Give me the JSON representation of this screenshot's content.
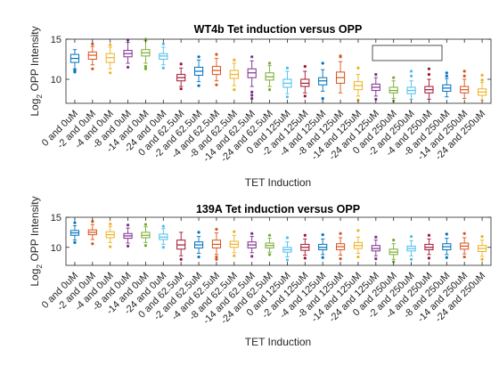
{
  "colors": {
    "cycle": [
      "#0072BD",
      "#D95319",
      "#EDB120",
      "#7E2F8E",
      "#77AC30",
      "#4DBEEE",
      "#A2142F"
    ]
  },
  "chart_data": [
    {
      "type": "box",
      "title": "WT4b Tet induction versus OPP",
      "xlabel": "TET Induction",
      "ylabel_main": "Log",
      "ylabel_sub": "2",
      "ylabel_rest": " OPP Intensity",
      "ylim": [
        7,
        15
      ],
      "yticks": [
        10,
        15
      ],
      "legend": "top-right (empty box)",
      "categories": [
        "0 and 0uM",
        "-2 and 0uM",
        "-4 and 0uM",
        "-8 and 0uM",
        "-14 and 0uM",
        "-24 and 0uM",
        "0 and 62.5uM",
        "-2 and 62.5uM",
        "-4 and 62.5uM",
        "-8 and 62.5uM",
        "-14 and 62.5uM",
        "-24 and 62.5uM",
        "0 and 125uM",
        "-2 and 125uM",
        "-4 and 125uM",
        "-8 and 125uM",
        "-14 and 125uM",
        "-24 and 125uM",
        "0 and 250uM",
        "-2 and 250uM",
        "-4 and 250uM",
        "-8 and 250uM",
        "-14 and 250uM",
        "-24 and 250uM"
      ],
      "boxes": [
        {
          "median": 12.6,
          "q1": 12.1,
          "q3": 13.1,
          "lo": 11.3,
          "hi": 13.7,
          "outliers": [
            10.9,
            11.1
          ]
        },
        {
          "median": 13.0,
          "q1": 12.5,
          "q3": 13.4,
          "lo": 11.8,
          "hi": 14.1,
          "outliers": [
            11.3,
            14.4
          ]
        },
        {
          "median": 12.7,
          "q1": 12.1,
          "q3": 13.2,
          "lo": 11.3,
          "hi": 14.0,
          "outliers": [
            10.8,
            14.3
          ]
        },
        {
          "median": 13.2,
          "q1": 12.8,
          "q3": 13.6,
          "lo": 12.0,
          "hi": 14.6,
          "outliers": [
            11.5,
            14.9
          ]
        },
        {
          "median": 13.3,
          "q1": 12.9,
          "q3": 13.7,
          "lo": 12.0,
          "hi": 14.8,
          "outliers": [
            11.3,
            11.6,
            15.0
          ]
        },
        {
          "median": 12.9,
          "q1": 12.5,
          "q3": 13.2,
          "lo": 11.8,
          "hi": 14.0,
          "outliers": [
            11.4,
            14.4
          ]
        },
        {
          "median": 10.2,
          "q1": 9.8,
          "q3": 10.6,
          "lo": 9.1,
          "hi": 11.4,
          "outliers": [
            8.8,
            11.9
          ]
        },
        {
          "median": 11.0,
          "q1": 10.5,
          "q3": 11.5,
          "lo": 9.7,
          "hi": 12.4,
          "outliers": [
            9.2,
            12.8
          ]
        },
        {
          "median": 11.1,
          "q1": 10.6,
          "q3": 11.6,
          "lo": 9.8,
          "hi": 12.6,
          "outliers": [
            9.3,
            13.1
          ]
        },
        {
          "median": 10.6,
          "q1": 10.1,
          "q3": 11.1,
          "lo": 9.2,
          "hi": 12.0,
          "outliers": [
            8.7,
            12.4
          ]
        },
        {
          "median": 10.8,
          "q1": 10.2,
          "q3": 11.3,
          "lo": 9.1,
          "hi": 12.3,
          "outliers": [
            7.6,
            8.0,
            8.4,
            12.8
          ]
        },
        {
          "median": 10.3,
          "q1": 9.9,
          "q3": 10.8,
          "lo": 9.1,
          "hi": 11.7,
          "outliers": [
            8.7,
            12.0
          ]
        },
        {
          "median": 9.5,
          "q1": 9.0,
          "q3": 10.0,
          "lo": 8.2,
          "hi": 11.0,
          "outliers": [
            7.8,
            11.4
          ]
        },
        {
          "median": 9.5,
          "q1": 9.1,
          "q3": 10.0,
          "lo": 8.3,
          "hi": 11.0,
          "outliers": [
            7.9,
            11.6
          ]
        },
        {
          "median": 9.8,
          "q1": 9.3,
          "q3": 10.2,
          "lo": 8.5,
          "hi": 11.2,
          "outliers": [
            7.6,
            12.0
          ]
        },
        {
          "median": 10.2,
          "q1": 9.5,
          "q3": 10.9,
          "lo": 8.3,
          "hi": 12.2,
          "outliers": [
            12.8,
            12.9
          ]
        },
        {
          "median": 9.2,
          "q1": 8.7,
          "q3": 9.7,
          "lo": 7.9,
          "hi": 10.6,
          "outliers": [
            7.4,
            11.4
          ]
        },
        {
          "median": 9.0,
          "q1": 8.6,
          "q3": 9.4,
          "lo": 7.9,
          "hi": 10.2,
          "outliers": [
            7.5,
            10.6
          ]
        },
        {
          "median": 8.6,
          "q1": 8.3,
          "q3": 9.0,
          "lo": 7.6,
          "hi": 9.8,
          "outliers": [
            7.3,
            10.2
          ]
        },
        {
          "median": 8.6,
          "q1": 8.2,
          "q3": 9.0,
          "lo": 7.5,
          "hi": 9.8,
          "outliers": [
            10.4,
            11.0
          ]
        },
        {
          "median": 8.7,
          "q1": 8.3,
          "q3": 9.1,
          "lo": 7.5,
          "hi": 10.0,
          "outliers": [
            10.6,
            11.3
          ]
        },
        {
          "median": 8.9,
          "q1": 8.5,
          "q3": 9.3,
          "lo": 7.8,
          "hi": 10.1,
          "outliers": [
            10.4,
            10.8
          ]
        },
        {
          "median": 8.7,
          "q1": 8.3,
          "q3": 9.1,
          "lo": 7.6,
          "hi": 10.0,
          "outliers": [
            10.4,
            11.0
          ]
        },
        {
          "median": 8.4,
          "q1": 8.0,
          "q3": 8.8,
          "lo": 7.4,
          "hi": 9.6,
          "outliers": [
            9.9,
            10.5
          ]
        }
      ]
    },
    {
      "type": "box",
      "title": "139A Tet induction versus OPP",
      "xlabel": "TET Induction",
      "ylabel_main": "Log",
      "ylabel_sub": "2",
      "ylabel_rest": " OPP Intensity",
      "ylim": [
        7,
        15
      ],
      "yticks": [
        10,
        15
      ],
      "categories": [
        "0 and 0uM",
        "-2 and 0uM",
        "-4 and 0uM",
        "-8 and 0uM",
        "-14 and 0uM",
        "-24 and 0uM",
        "0 and 62.5uM",
        "-2 and 62.5uM",
        "-4 and 62.5uM",
        "-8 and 62.5uM",
        "-14 and 62.5uM",
        "-24 and 62.5uM",
        "0 and 125uM",
        "-2 and 125uM",
        "-4 and 125uM",
        "-8 and 125uM",
        "-14 and 125uM",
        "-24 and 125uM",
        "0 and 250uM",
        "-2 and 250uM",
        "-4 and 250uM",
        "-8 and 250uM",
        "-14 and 250uM",
        "-24 and 250uM"
      ],
      "boxes": [
        {
          "median": 12.4,
          "q1": 12.0,
          "q3": 12.8,
          "lo": 11.2,
          "hi": 13.6,
          "outliers": [
            10.8,
            14.1
          ]
        },
        {
          "median": 12.5,
          "q1": 12.1,
          "q3": 12.9,
          "lo": 11.3,
          "hi": 13.8,
          "outliers": [
            10.6,
            14.3
          ]
        },
        {
          "median": 12.1,
          "q1": 11.6,
          "q3": 12.6,
          "lo": 10.8,
          "hi": 13.5,
          "outliers": [
            10.1,
            13.9
          ]
        },
        {
          "median": 11.9,
          "q1": 11.5,
          "q3": 12.3,
          "lo": 10.7,
          "hi": 13.2,
          "outliers": [
            10.2,
            13.7
          ]
        },
        {
          "median": 12.0,
          "q1": 11.6,
          "q3": 12.5,
          "lo": 10.8,
          "hi": 13.4,
          "outliers": [
            10.3,
            13.8
          ]
        },
        {
          "median": 11.7,
          "q1": 11.3,
          "q3": 12.2,
          "lo": 10.5,
          "hi": 13.1,
          "outliers": [
            10.0,
            13.5
          ]
        },
        {
          "median": 10.4,
          "q1": 9.7,
          "q3": 11.2,
          "lo": 8.6,
          "hi": 12.5,
          "outliers": [
            8.0
          ]
        },
        {
          "median": 10.4,
          "q1": 9.9,
          "q3": 10.9,
          "lo": 9.0,
          "hi": 11.8,
          "outliers": [
            8.4,
            12.5
          ]
        },
        {
          "median": 10.5,
          "q1": 9.9,
          "q3": 11.2,
          "lo": 8.8,
          "hi": 12.4,
          "outliers": [
            8.0,
            8.4,
            13.0
          ]
        },
        {
          "median": 10.5,
          "q1": 10.0,
          "q3": 11.0,
          "lo": 9.1,
          "hi": 12.0,
          "outliers": [
            8.6,
            12.6
          ]
        },
        {
          "median": 10.4,
          "q1": 9.9,
          "q3": 10.9,
          "lo": 9.1,
          "hi": 11.8,
          "outliers": [
            8.5,
            12.3
          ]
        },
        {
          "median": 10.3,
          "q1": 9.9,
          "q3": 10.7,
          "lo": 9.2,
          "hi": 11.5,
          "outliers": [
            8.8,
            12.0
          ]
        },
        {
          "median": 9.6,
          "q1": 9.2,
          "q3": 10.0,
          "lo": 8.4,
          "hi": 10.9,
          "outliers": [
            7.9,
            11.6
          ]
        },
        {
          "median": 10.0,
          "q1": 9.5,
          "q3": 10.5,
          "lo": 8.7,
          "hi": 11.4,
          "outliers": [
            8.2,
            12.0
          ]
        },
        {
          "median": 10.0,
          "q1": 9.6,
          "q3": 10.5,
          "lo": 8.8,
          "hi": 11.4,
          "outliers": [
            8.3,
            12.1
          ]
        },
        {
          "median": 10.1,
          "q1": 9.6,
          "q3": 10.6,
          "lo": 8.7,
          "hi": 11.6,
          "outliers": [
            8.1,
            12.3
          ]
        },
        {
          "median": 10.3,
          "q1": 9.8,
          "q3": 10.8,
          "lo": 9.0,
          "hi": 11.7,
          "outliers": [
            8.4,
            12.8
          ]
        },
        {
          "median": 9.8,
          "q1": 9.4,
          "q3": 10.3,
          "lo": 8.6,
          "hi": 11.2,
          "outliers": [
            8.1,
            11.7
          ]
        },
        {
          "median": 9.2,
          "q1": 8.8,
          "q3": 9.7,
          "lo": 8.0,
          "hi": 10.6,
          "outliers": [
            7.6,
            11.2
          ]
        },
        {
          "median": 9.8,
          "q1": 9.4,
          "q3": 10.2,
          "lo": 8.6,
          "hi": 11.1,
          "outliers": [
            8.0,
            11.8
          ]
        },
        {
          "median": 10.0,
          "q1": 9.6,
          "q3": 10.5,
          "lo": 8.8,
          "hi": 11.4,
          "outliers": [
            8.2,
            12.0
          ]
        },
        {
          "median": 10.1,
          "q1": 9.6,
          "q3": 10.6,
          "lo": 8.8,
          "hi": 11.5,
          "outliers": [
            8.3,
            12.2
          ]
        },
        {
          "median": 10.2,
          "q1": 9.7,
          "q3": 10.7,
          "lo": 8.9,
          "hi": 11.6,
          "outliers": [
            8.4,
            12.3
          ]
        },
        {
          "median": 9.8,
          "q1": 9.3,
          "q3": 10.3,
          "lo": 8.5,
          "hi": 11.2,
          "outliers": [
            8.0,
            11.8
          ]
        }
      ]
    }
  ]
}
